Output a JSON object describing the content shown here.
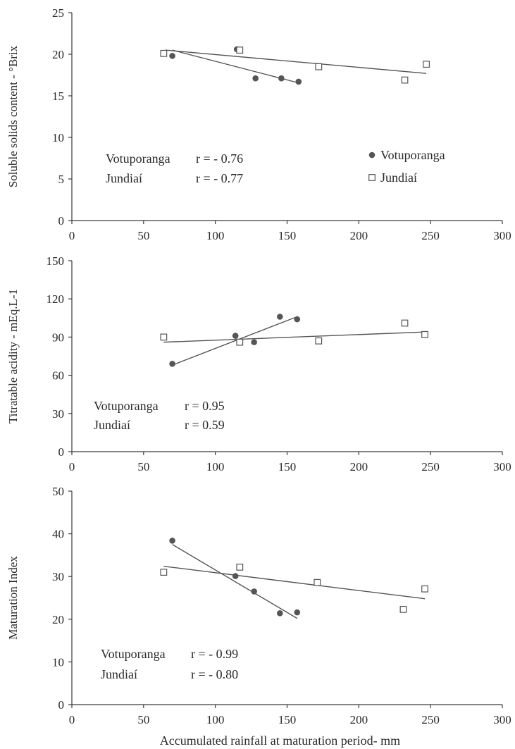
{
  "chart_data": [
    {
      "type": "scatter",
      "ylabel": "Soluble solids content - °Brix",
      "xlabel": "",
      "xlim": [
        0,
        300
      ],
      "ylim": [
        0,
        25
      ],
      "xticks": [
        "0",
        "50",
        "100",
        "150",
        "200",
        "250",
        "300"
      ],
      "yticks": [
        "0",
        "5",
        "10",
        "15",
        "20",
        "25"
      ],
      "series": [
        {
          "name": "Votuporanga",
          "marker": "filled-circle",
          "color": "#555555",
          "x": [
            70,
            115,
            128,
            146,
            158
          ],
          "y": [
            19.8,
            20.6,
            17.1,
            17.1,
            16.7
          ],
          "trendline": [
            [
              70,
              20.5
            ],
            [
              157,
              16.6
            ]
          ]
        },
        {
          "name": "Jundiaí",
          "marker": "open-square",
          "color": "#555555",
          "x": [
            64,
            117,
            172,
            232,
            247
          ],
          "y": [
            20.1,
            20.5,
            18.5,
            16.9,
            18.8
          ],
          "trendline": [
            [
              65,
              20.5
            ],
            [
              247,
              17.7
            ]
          ]
        }
      ],
      "annotations": [
        {
          "site": "Votuporanga",
          "r": "r = - 0.76"
        },
        {
          "site": "Jundiaí",
          "r": "r = - 0.77"
        }
      ],
      "legend": {
        "placement": "right-middle",
        "entries": [
          "Votuporanga",
          "Jundiaí"
        ]
      },
      "grid": false
    },
    {
      "type": "scatter",
      "ylabel": "Titratable acidity - mEq.L-1",
      "xlabel": "",
      "xlim": [
        0,
        300
      ],
      "ylim": [
        0,
        150
      ],
      "xticks": [
        "0",
        "50",
        "100",
        "150",
        "200",
        "250",
        "300"
      ],
      "yticks": [
        "0",
        "30",
        "60",
        "90",
        "120",
        "150"
      ],
      "series": [
        {
          "name": "Votuporanga",
          "marker": "filled-circle",
          "color": "#555555",
          "x": [
            70,
            114,
            127,
            145,
            157
          ],
          "y": [
            69,
            91,
            86,
            106,
            104
          ],
          "trendline": [
            [
              70,
              68
            ],
            [
              157,
              106
            ]
          ]
        },
        {
          "name": "Jundiaí",
          "marker": "open-square",
          "color": "#555555",
          "x": [
            64,
            117,
            172,
            232,
            246
          ],
          "y": [
            90,
            86,
            87,
            101,
            92
          ],
          "trendline": [
            [
              64,
              86
            ],
            [
              246,
              94
            ]
          ]
        }
      ],
      "annotations": [
        {
          "site": "Votuporanga",
          "r": "r =  0.95"
        },
        {
          "site": "Jundiaí",
          "r": "r =  0.59"
        }
      ],
      "grid": false
    },
    {
      "type": "scatter",
      "ylabel": "Maturation Index",
      "xlabel": "Accumulated  rainfall at maturation  period- mm",
      "xlim": [
        0,
        300
      ],
      "ylim": [
        0,
        50
      ],
      "xticks": [
        "0",
        "50",
        "100",
        "150",
        "200",
        "250",
        "300"
      ],
      "yticks": [
        "0",
        "10",
        "20",
        "30",
        "40",
        "50"
      ],
      "series": [
        {
          "name": "Votuporanga",
          "marker": "filled-circle",
          "color": "#555555",
          "x": [
            70,
            114,
            127,
            145,
            157
          ],
          "y": [
            38.4,
            30.1,
            26.5,
            21.4,
            21.6
          ],
          "trendline": [
            [
              70,
              37.5
            ],
            [
              157,
              20.2
            ]
          ]
        },
        {
          "name": "Jundiaí",
          "marker": "open-square",
          "color": "#555555",
          "x": [
            64,
            117,
            171,
            231,
            246
          ],
          "y": [
            31,
            32.2,
            28.6,
            22.3,
            27.1
          ],
          "trendline": [
            [
              64,
              32.4
            ],
            [
              246,
              24.8
            ]
          ]
        }
      ],
      "annotations": [
        {
          "site": "Votuporanga",
          "r": "r = - 0.99"
        },
        {
          "site": "Jundiaí",
          "r": "r = - 0.80"
        }
      ],
      "grid": false
    }
  ]
}
